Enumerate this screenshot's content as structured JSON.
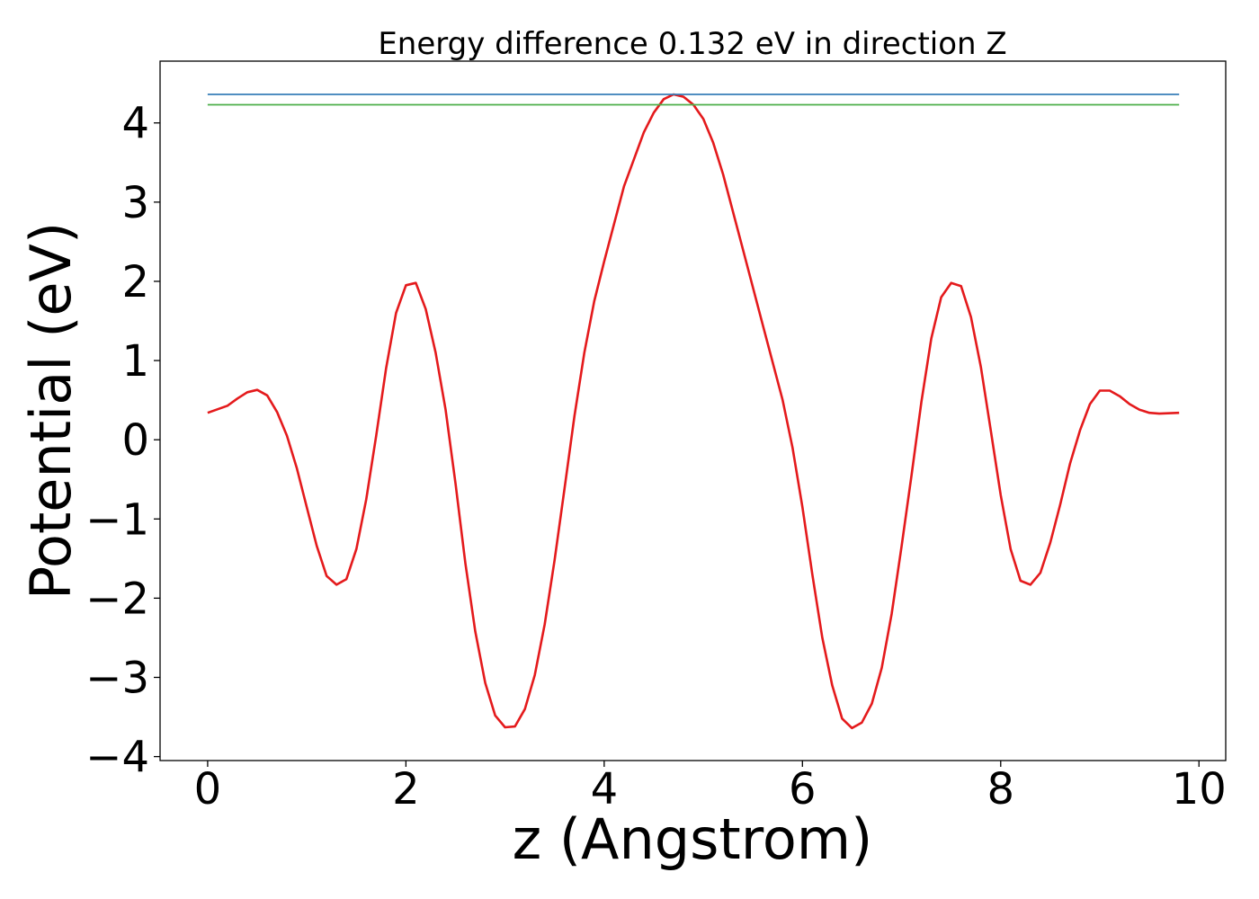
{
  "chart_data": {
    "type": "line",
    "title": "Energy difference 0.132 eV in direction Z",
    "xlabel": "z (Angstrom)",
    "ylabel": "Potential (eV)",
    "xlim": [
      -0.48,
      10.27
    ],
    "ylim": [
      -4.05,
      4.78
    ],
    "xticks": [
      0,
      2,
      4,
      6,
      8,
      10
    ],
    "xtick_labels": [
      "0",
      "2",
      "4",
      "6",
      "8",
      "10"
    ],
    "yticks": [
      -4,
      -3,
      -2,
      -1,
      0,
      1,
      2,
      3,
      4
    ],
    "ytick_labels": [
      "−4",
      "−3",
      "−2",
      "−1",
      "0",
      "1",
      "2",
      "3",
      "4"
    ],
    "grid": false,
    "legend": "none",
    "series": [
      {
        "color": "#e41a1c",
        "x": [
          0.0,
          0.2,
          0.3,
          0.4,
          0.5,
          0.6,
          0.7,
          0.8,
          0.9,
          1.0,
          1.1,
          1.2,
          1.3,
          1.4,
          1.5,
          1.6,
          1.7,
          1.8,
          1.9,
          2.0,
          2.1,
          2.2,
          2.3,
          2.4,
          2.5,
          2.6,
          2.7,
          2.8,
          2.9,
          3.0,
          3.1,
          3.2,
          3.3,
          3.4,
          3.5,
          3.6,
          3.7,
          3.8,
          3.9,
          4.0,
          4.2,
          4.4,
          4.5,
          4.6,
          4.7,
          4.8,
          4.9,
          5.0,
          5.1,
          5.2,
          5.4,
          5.6,
          5.8,
          5.9,
          6.0,
          6.1,
          6.2,
          6.3,
          6.4,
          6.5,
          6.6,
          6.7,
          6.8,
          6.9,
          7.0,
          7.1,
          7.2,
          7.3,
          7.4,
          7.5,
          7.6,
          7.7,
          7.8,
          7.9,
          8.0,
          8.1,
          8.2,
          8.3,
          8.4,
          8.5,
          8.6,
          8.7,
          8.8,
          8.9,
          9.0,
          9.1,
          9.2,
          9.3,
          9.4,
          9.5,
          9.6,
          9.8
        ],
        "y": [
          0.34,
          0.43,
          0.52,
          0.6,
          0.63,
          0.56,
          0.35,
          0.05,
          -0.36,
          -0.85,
          -1.34,
          -1.72,
          -1.83,
          -1.76,
          -1.38,
          -0.75,
          0.05,
          0.9,
          1.6,
          1.95,
          1.98,
          1.65,
          1.1,
          0.38,
          -0.55,
          -1.56,
          -2.42,
          -3.07,
          -3.48,
          -3.63,
          -3.62,
          -3.4,
          -2.97,
          -2.33,
          -1.52,
          -0.62,
          0.3,
          1.1,
          1.75,
          2.25,
          3.2,
          3.88,
          4.13,
          4.3,
          4.36,
          4.33,
          4.23,
          4.05,
          3.75,
          3.35,
          2.4,
          1.45,
          0.5,
          -0.1,
          -0.85,
          -1.7,
          -2.5,
          -3.1,
          -3.52,
          -3.64,
          -3.57,
          -3.33,
          -2.88,
          -2.2,
          -1.35,
          -0.45,
          0.48,
          1.28,
          1.8,
          1.98,
          1.94,
          1.55,
          0.92,
          0.12,
          -0.7,
          -1.38,
          -1.78,
          -1.83,
          -1.68,
          -1.3,
          -0.82,
          -0.3,
          0.12,
          0.45,
          0.62,
          0.62,
          0.55,
          0.45,
          0.38,
          0.34,
          0.33,
          0.34
        ]
      },
      {
        "color": "#377eb8",
        "x": [
          0.0,
          9.8
        ],
        "y": [
          4.36,
          4.36
        ]
      },
      {
        "color": "#4daf4a",
        "x": [
          0.0,
          9.8
        ],
        "y": [
          4.23,
          4.23
        ]
      }
    ]
  }
}
